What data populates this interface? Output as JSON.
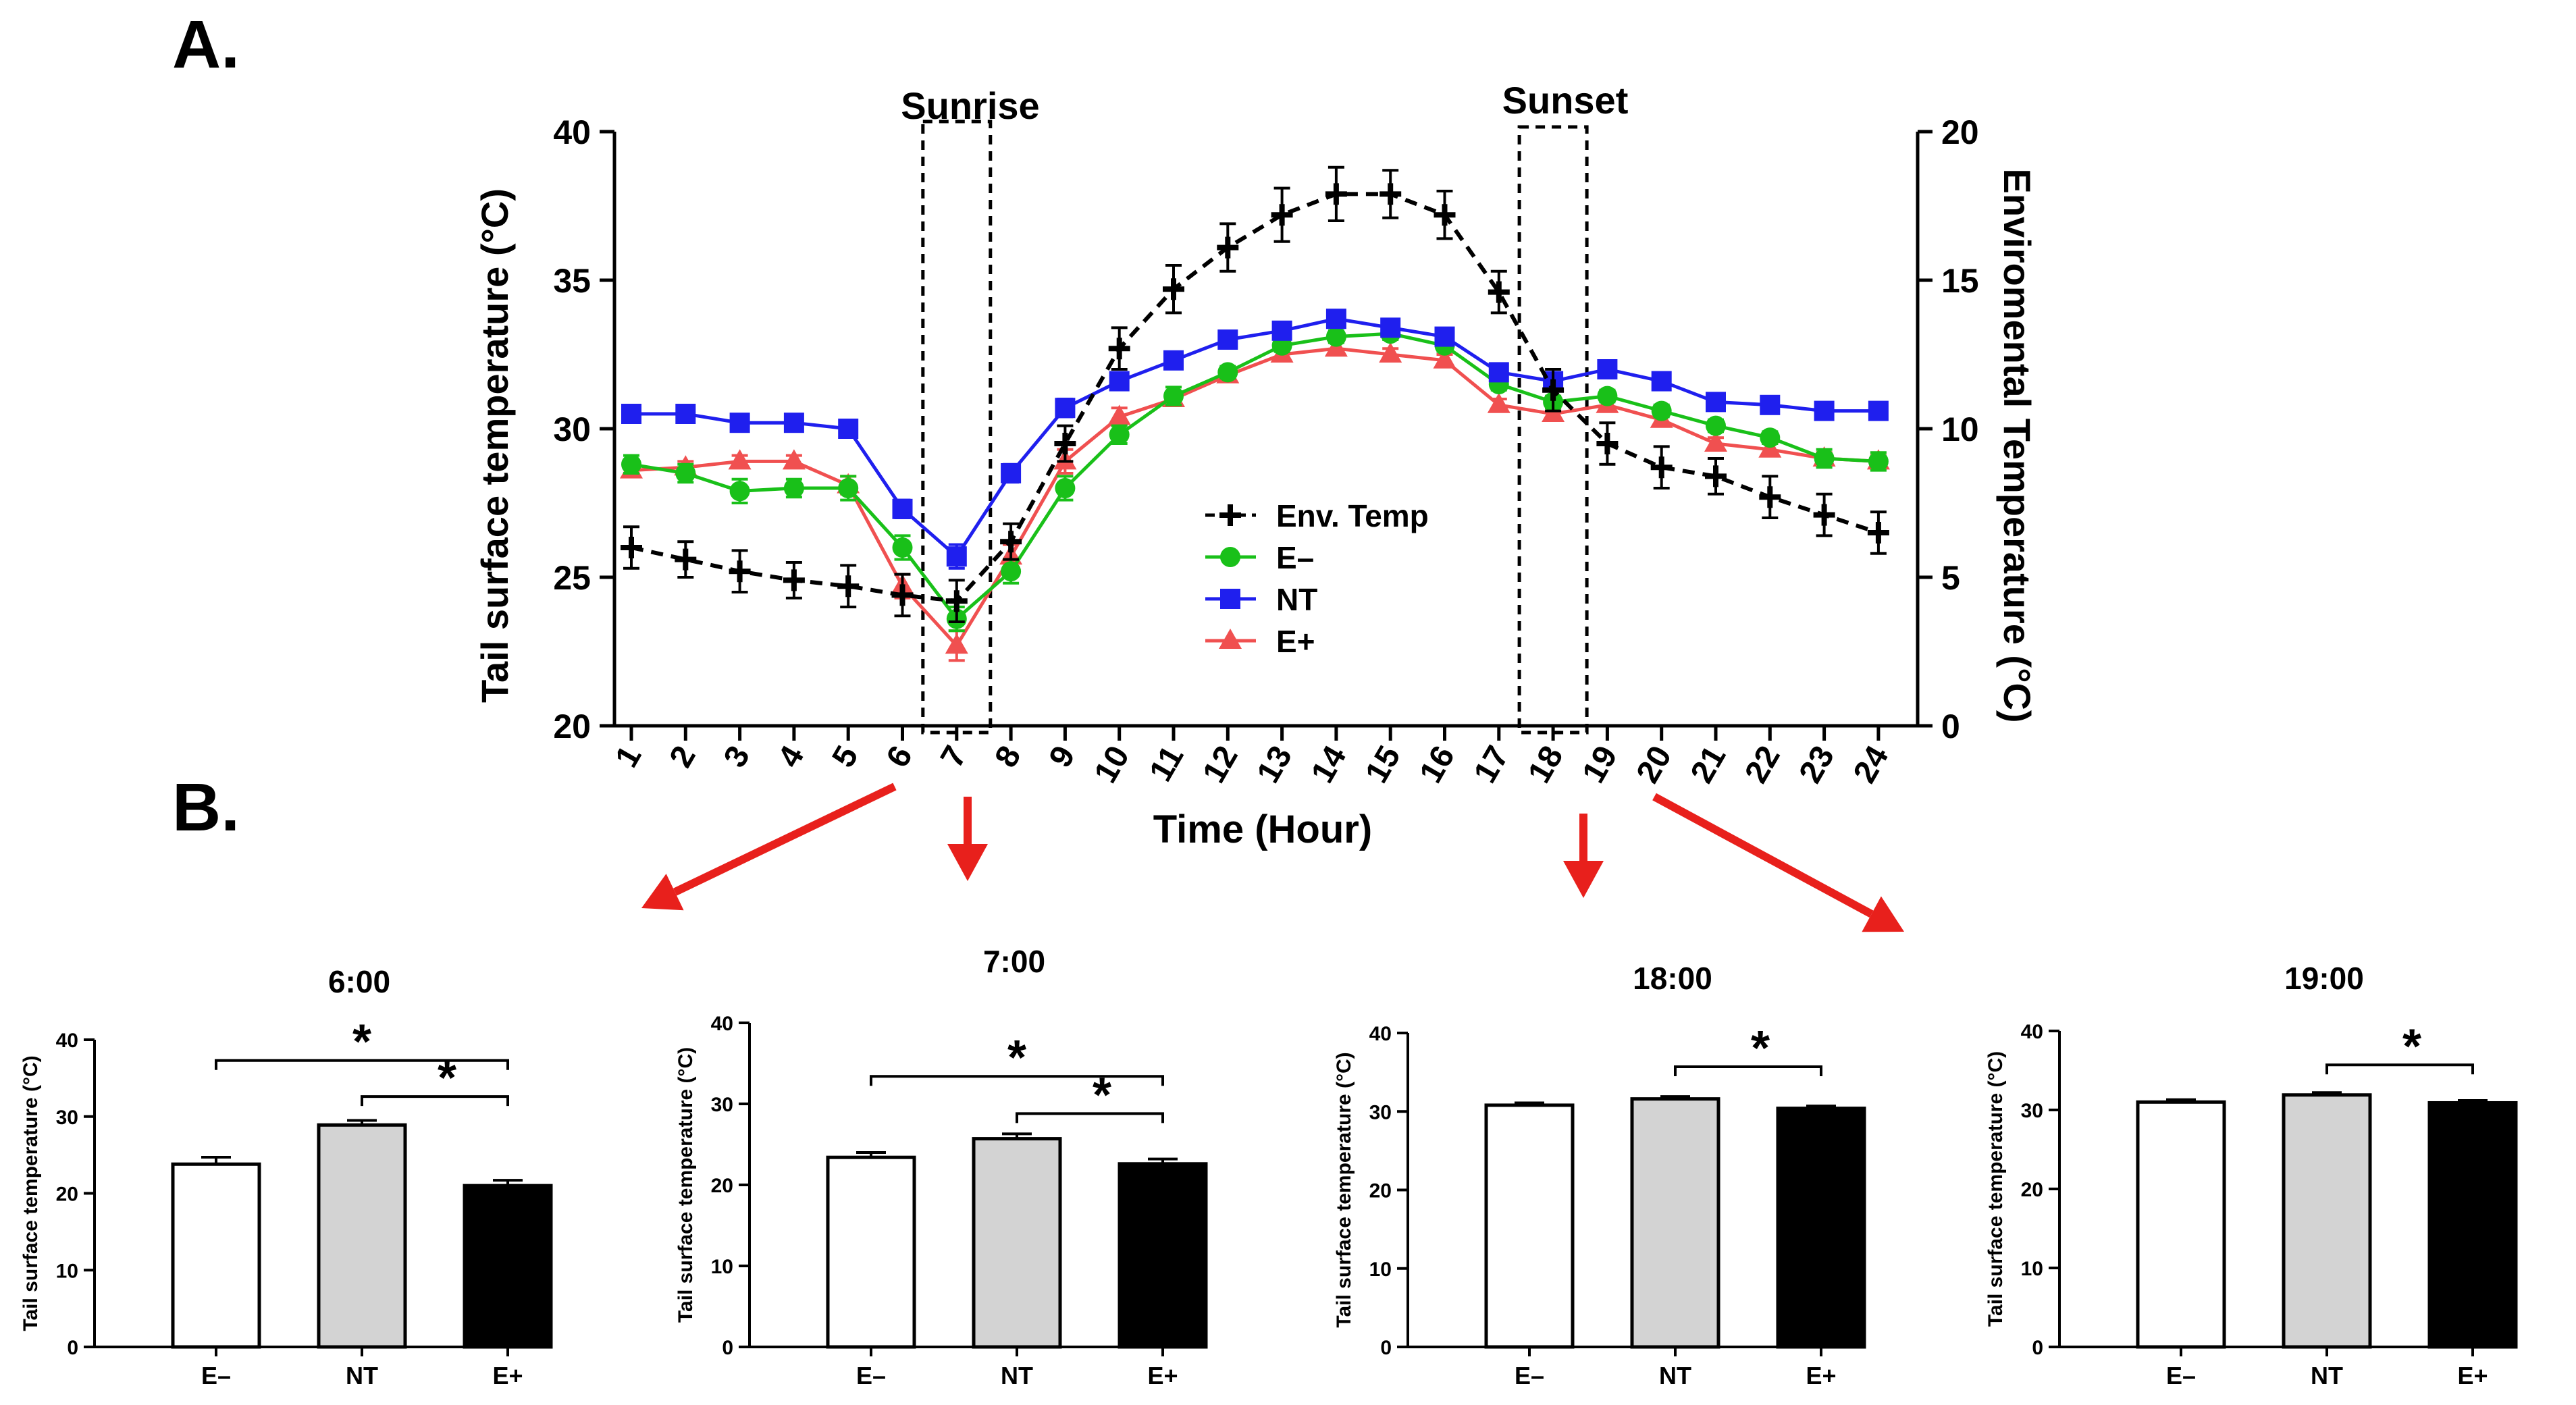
{
  "panel_labels": {
    "a": "A.",
    "b": "B."
  },
  "colors": {
    "env": "#000000",
    "e_minus": "#19c019",
    "nt": "#1f1fee",
    "e_plus": "#f05050",
    "arrow": "#e8201c",
    "bar_nt": "#d3d3d3",
    "bar_eplus": "#000000",
    "bar_eminus": "#ffffff"
  },
  "chart_data": [
    {
      "type": "line",
      "title": "",
      "xlabel": "Time (Hour)",
      "ylabel": "Tail surface temperature (°C)",
      "ylabel_right": "Enviromental Temperature (°C)",
      "x": [
        1,
        2,
        3,
        4,
        5,
        6,
        7,
        8,
        9,
        10,
        11,
        12,
        13,
        14,
        15,
        16,
        17,
        18,
        19,
        20,
        21,
        22,
        23,
        24
      ],
      "x_ticks": [
        "1",
        "2",
        "3",
        "4",
        "5",
        "6",
        "7",
        "8",
        "9",
        "10",
        "11",
        "12",
        "13",
        "14",
        "15",
        "16",
        "17",
        "18",
        "19",
        "20",
        "21",
        "22",
        "23",
        "24"
      ],
      "ylim": [
        20,
        40
      ],
      "y_ticks": [
        "20",
        "25",
        "30",
        "35",
        "40"
      ],
      "ylim_right": [
        0,
        20
      ],
      "y_ticks_right": [
        "0",
        "5",
        "10",
        "15",
        "20"
      ],
      "annotations": {
        "sunrise": "Sunrise",
        "sunset": "Sunset",
        "sunrise_hour": 7,
        "sunset_hour": 18
      },
      "series": [
        {
          "name": "Env. Temp",
          "axis": "right",
          "marker": "plus",
          "style": "dashed",
          "values": [
            6.0,
            5.6,
            5.2,
            4.9,
            4.7,
            4.4,
            4.2,
            6.2,
            9.5,
            12.7,
            14.7,
            16.1,
            17.2,
            17.9,
            17.9,
            17.2,
            14.6,
            11.3,
            9.5,
            8.7,
            8.4,
            7.7,
            7.1,
            6.5
          ],
          "errors": [
            0.7,
            0.6,
            0.7,
            0.6,
            0.7,
            0.7,
            0.7,
            0.6,
            0.6,
            0.7,
            0.8,
            0.8,
            0.9,
            0.9,
            0.8,
            0.8,
            0.7,
            0.7,
            0.7,
            0.7,
            0.6,
            0.7,
            0.7,
            0.7
          ]
        },
        {
          "name": "E–",
          "axis": "left",
          "marker": "circle",
          "values": [
            28.8,
            28.5,
            27.9,
            28.0,
            28.0,
            26.0,
            23.6,
            25.2,
            28.0,
            29.8,
            31.1,
            31.9,
            32.8,
            33.1,
            33.2,
            32.8,
            31.5,
            30.9,
            31.1,
            30.6,
            30.1,
            29.7,
            29.0,
            28.9
          ],
          "errors": [
            0.3,
            0.3,
            0.4,
            0.3,
            0.4,
            0.4,
            0.4,
            0.4,
            0.4,
            0.3,
            0.3,
            0.2,
            0.2,
            0.2,
            0.2,
            0.2,
            0.2,
            0.2,
            0.2,
            0.2,
            0.2,
            0.2,
            0.3,
            0.3
          ]
        },
        {
          "name": "NT",
          "axis": "left",
          "marker": "square",
          "values": [
            30.5,
            30.5,
            30.2,
            30.2,
            30.0,
            27.3,
            25.7,
            28.5,
            30.7,
            31.6,
            32.3,
            33.0,
            33.3,
            33.7,
            33.4,
            33.1,
            31.9,
            31.6,
            32.0,
            31.6,
            30.9,
            30.8,
            30.6,
            30.6
          ],
          "errors": [
            0.2,
            0.2,
            0.2,
            0.2,
            0.2,
            0.3,
            0.4,
            0.3,
            0.3,
            0.2,
            0.2,
            0.2,
            0.2,
            0.2,
            0.2,
            0.2,
            0.2,
            0.2,
            0.2,
            0.2,
            0.2,
            0.2,
            0.2,
            0.2
          ]
        },
        {
          "name": "E+",
          "axis": "left",
          "marker": "triangle",
          "values": [
            28.6,
            28.7,
            28.9,
            28.9,
            28.1,
            24.7,
            22.7,
            25.7,
            28.9,
            30.4,
            31.0,
            31.8,
            32.5,
            32.7,
            32.5,
            32.3,
            30.8,
            30.5,
            30.8,
            30.3,
            29.5,
            29.3,
            29.0,
            28.9
          ],
          "errors": [
            0.2,
            0.2,
            0.2,
            0.2,
            0.3,
            0.4,
            0.5,
            0.4,
            0.4,
            0.3,
            0.2,
            0.2,
            0.2,
            0.2,
            0.2,
            0.2,
            0.2,
            0.2,
            0.2,
            0.2,
            0.2,
            0.2,
            0.2,
            0.2
          ]
        }
      ],
      "legend": [
        "Env. Temp",
        "E–",
        "NT",
        "E+"
      ],
      "legend_position": "center"
    },
    {
      "type": "bar",
      "title": "6:00",
      "xlabel": "",
      "ylabel": "Tail surface temperature (°C)",
      "categories": [
        "E–",
        "NT",
        "E+"
      ],
      "values": [
        23.8,
        28.9,
        21.0
      ],
      "errors": [
        0.9,
        0.6,
        0.7
      ],
      "ylim": [
        0,
        40
      ],
      "y_ticks": [
        "0",
        "10",
        "20",
        "30",
        "40"
      ],
      "significance": [
        {
          "from": 0,
          "to": 2,
          "label": "*",
          "level": 37.3
        },
        {
          "from": 1,
          "to": 2,
          "label": "*",
          "level": 32.6
        }
      ]
    },
    {
      "type": "bar",
      "title": "7:00",
      "xlabel": "",
      "ylabel": "Tail surface temperature (°C)",
      "categories": [
        "E–",
        "NT",
        "E+"
      ],
      "values": [
        23.4,
        25.7,
        22.6
      ],
      "errors": [
        0.6,
        0.6,
        0.6
      ],
      "ylim": [
        0,
        40
      ],
      "y_ticks": [
        "0",
        "10",
        "20",
        "30",
        "40"
      ],
      "significance": [
        {
          "from": 0,
          "to": 2,
          "label": "*",
          "level": 33.4
        },
        {
          "from": 1,
          "to": 2,
          "label": "*",
          "level": 28.8
        }
      ]
    },
    {
      "type": "bar",
      "title": "18:00",
      "xlabel": "",
      "ylabel": "Tail surface temperature (°C)",
      "categories": [
        "E–",
        "NT",
        "E+"
      ],
      "values": [
        30.8,
        31.6,
        30.4
      ],
      "errors": [
        0.3,
        0.3,
        0.3
      ],
      "ylim": [
        0,
        40
      ],
      "y_ticks": [
        "0",
        "10",
        "20",
        "30",
        "40"
      ],
      "significance": [
        {
          "from": 1,
          "to": 2,
          "label": "*",
          "level": 35.7
        }
      ]
    },
    {
      "type": "bar",
      "title": "19:00",
      "xlabel": "",
      "ylabel": "Tail surface temperature (°C)",
      "categories": [
        "E–",
        "NT",
        "E+"
      ],
      "values": [
        31.0,
        31.9,
        30.9
      ],
      "errors": [
        0.3,
        0.3,
        0.3
      ],
      "ylim": [
        0,
        40
      ],
      "y_ticks": [
        "0",
        "10",
        "20",
        "30",
        "40"
      ],
      "significance": [
        {
          "from": 1,
          "to": 2,
          "label": "*",
          "level": 35.7
        }
      ]
    }
  ]
}
